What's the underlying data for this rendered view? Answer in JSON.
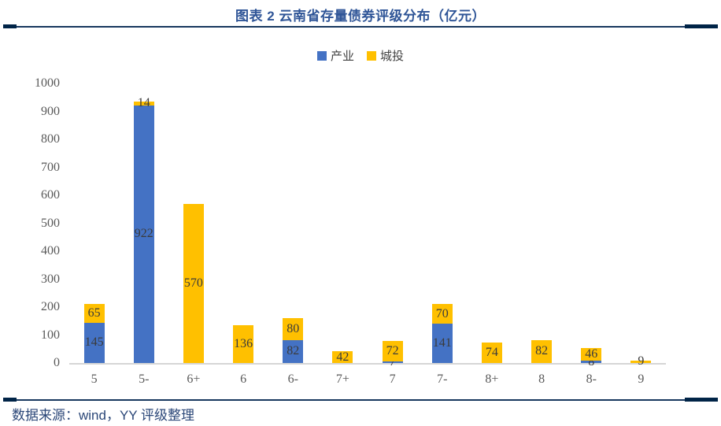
{
  "header": {
    "title": "图表 2 云南省存量债券评级分布（亿元）"
  },
  "footer": {
    "source": "数据来源：wind，YY 评级整理"
  },
  "colors": {
    "title": "#2F5597",
    "rule": "#17375E",
    "industry_blue": "#4472C4",
    "chengtou_gold": "#FFC000",
    "axis_text": "#595959",
    "label_text": "#3B3B3B",
    "source_text": "#2B4778"
  },
  "chart_data": {
    "type": "bar",
    "stacked": true,
    "title": "图表 2 云南省存量债券评级分布（亿元）",
    "categories": [
      "5",
      "5-",
      "6+",
      "6",
      "6-",
      "7+",
      "7",
      "7-",
      "8+",
      "8",
      "8-",
      "9"
    ],
    "series": [
      {
        "name": "产业",
        "color": "#4472C4",
        "values": [
          145,
          922,
          0,
          0,
          82,
          0,
          7,
          141,
          0,
          0,
          8,
          0
        ]
      },
      {
        "name": "城投",
        "color": "#FFC000",
        "values": [
          65,
          14,
          570,
          136,
          80,
          42,
          72,
          70,
          74,
          82,
          46,
          9
        ]
      }
    ],
    "xlabel": "",
    "ylabel": "",
    "ylim": [
      0,
      1000
    ],
    "ytick_step": 100,
    "grid": false,
    "legend_position": "top",
    "data_labels": true
  }
}
